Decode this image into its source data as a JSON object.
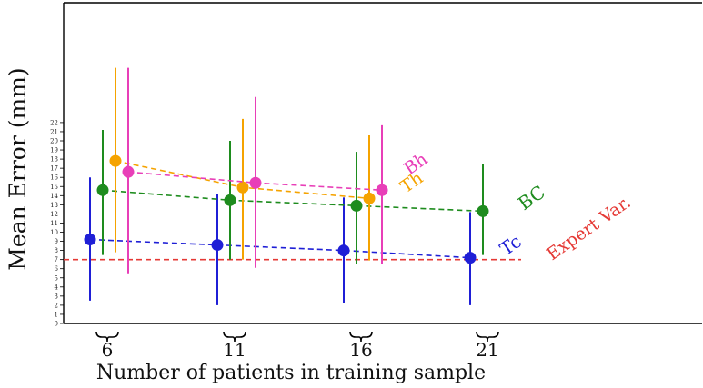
{
  "chart_data": {
    "type": "scatter",
    "title": "",
    "xlabel": "Number of patients in training sample",
    "ylabel": "Mean Error (mm)",
    "ylim": [
      0,
      22
    ],
    "yticks": [
      "0",
      "1",
      "2",
      "3",
      "4",
      "5",
      "6",
      "7",
      "8",
      "9",
      "10",
      "11",
      "12",
      "13",
      "14",
      "15",
      "16",
      "17",
      "18",
      "19",
      "20",
      "21",
      "22"
    ],
    "categories": [
      "6",
      "11",
      "16",
      "21"
    ],
    "grid": false,
    "legend": "inline labels at right end of each series",
    "reference_line": {
      "label": "Expert Var.",
      "value": 7.0,
      "color": "#e53935",
      "dashed": true
    },
    "series": [
      {
        "name": "Tc",
        "color": "#1f1fd6",
        "points": [
          {
            "x": "6",
            "y": 9.2,
            "low": 2.5,
            "high": 16.0
          },
          {
            "x": "11",
            "y": 8.6,
            "low": 2.0,
            "high": 14.2
          },
          {
            "x": "16",
            "y": 8.0,
            "low": 2.2,
            "high": 13.8
          },
          {
            "x": "21",
            "y": 7.2,
            "low": 2.0,
            "high": 12.2
          }
        ]
      },
      {
        "name": "BC",
        "color": "#1e8c1e",
        "points": [
          {
            "x": "6",
            "y": 14.6,
            "low": 7.5,
            "high": 21.2
          },
          {
            "x": "11",
            "y": 13.5,
            "low": 7.0,
            "high": 20.0
          },
          {
            "x": "16",
            "y": 12.9,
            "low": 6.5,
            "high": 18.8
          },
          {
            "x": "21",
            "y": 12.3,
            "low": 7.5,
            "high": 17.5
          }
        ]
      },
      {
        "name": "Th",
        "color": "#f5a300",
        "points": [
          {
            "x": "6",
            "y": 17.8,
            "low": 7.8,
            "high": 28.0
          },
          {
            "x": "11",
            "y": 14.9,
            "low": 7.0,
            "high": 22.4
          },
          {
            "x": "16",
            "y": 13.7,
            "low": 6.9,
            "high": 20.6
          }
        ]
      },
      {
        "name": "Bh",
        "color": "#e83fb8",
        "points": [
          {
            "x": "6",
            "y": 16.6,
            "low": 5.5,
            "high": 28.0
          },
          {
            "x": "11",
            "y": 15.4,
            "low": 6.1,
            "high": 24.8
          },
          {
            "x": "16",
            "y": 14.6,
            "low": 6.5,
            "high": 21.7
          }
        ]
      }
    ]
  }
}
